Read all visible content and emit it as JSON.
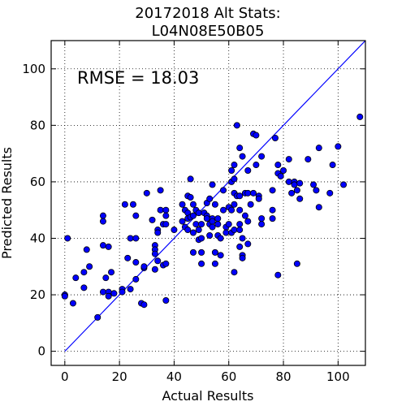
{
  "chart_data": {
    "type": "scatter",
    "title_line1": "20172018 Alt Stats:",
    "title_line2": "L04N08E50B05",
    "xlabel": "Actual Results",
    "ylabel": "Predicted Results",
    "annotation": "RMSE = 18.03",
    "xlim": [
      -5,
      110
    ],
    "ylim": [
      -5,
      110
    ],
    "xticks": [
      0,
      20,
      40,
      60,
      80,
      100
    ],
    "yticks": [
      0,
      20,
      40,
      60,
      80,
      100
    ],
    "grid": true,
    "reference_line": [
      [
        0,
        0
      ],
      [
        110,
        110
      ]
    ],
    "colors": {
      "marker": "#0000ff",
      "line": "#0000ff",
      "edge": "#000000",
      "grid": "#000000"
    },
    "points": [
      [
        0,
        20
      ],
      [
        0,
        19.5
      ],
      [
        1,
        40
      ],
      [
        3,
        17
      ],
      [
        4,
        26
      ],
      [
        7,
        28
      ],
      [
        7,
        22.5
      ],
      [
        8,
        36
      ],
      [
        9,
        30
      ],
      [
        12,
        12
      ],
      [
        14,
        48
      ],
      [
        14,
        46
      ],
      [
        14,
        37.5
      ],
      [
        14,
        21
      ],
      [
        15,
        26
      ],
      [
        16,
        37
      ],
      [
        16,
        21
      ],
      [
        16,
        19.5
      ],
      [
        17,
        28
      ],
      [
        18,
        20.5
      ],
      [
        21,
        22
      ],
      [
        21,
        21
      ],
      [
        22,
        52
      ],
      [
        23,
        33
      ],
      [
        24,
        22
      ],
      [
        24,
        40
      ],
      [
        25,
        52
      ],
      [
        26,
        25.5
      ],
      [
        26,
        31.5
      ],
      [
        26,
        40
      ],
      [
        26,
        48
      ],
      [
        28,
        17
      ],
      [
        29,
        16.5
      ],
      [
        29,
        29.5
      ],
      [
        29,
        30
      ],
      [
        30,
        56
      ],
      [
        32,
        46.5
      ],
      [
        33,
        29
      ],
      [
        33,
        37.5
      ],
      [
        33,
        36
      ],
      [
        33,
        34.5
      ],
      [
        34,
        32
      ],
      [
        34,
        43
      ],
      [
        34,
        42
      ],
      [
        35,
        57
      ],
      [
        35,
        50
      ],
      [
        36,
        45
      ],
      [
        36,
        30.5
      ],
      [
        37,
        31
      ],
      [
        37,
        50
      ],
      [
        37,
        48
      ],
      [
        37,
        45
      ],
      [
        37,
        18
      ],
      [
        40,
        43
      ],
      [
        43,
        52
      ],
      [
        43,
        46
      ],
      [
        44,
        50
      ],
      [
        44,
        44
      ],
      [
        45,
        55
      ],
      [
        45,
        49
      ],
      [
        45,
        47
      ],
      [
        45,
        43
      ],
      [
        46,
        61
      ],
      [
        46,
        54.5
      ],
      [
        46,
        47.5
      ],
      [
        47,
        52
      ],
      [
        47,
        48
      ],
      [
        47,
        42
      ],
      [
        47,
        35
      ],
      [
        48,
        50
      ],
      [
        48,
        45
      ],
      [
        49,
        49
      ],
      [
        49,
        43
      ],
      [
        49,
        39.5
      ],
      [
        50,
        45
      ],
      [
        50,
        40
      ],
      [
        50,
        35
      ],
      [
        50,
        31
      ],
      [
        51,
        49
      ],
      [
        52,
        52.5
      ],
      [
        52,
        48
      ],
      [
        52,
        47
      ],
      [
        53,
        54
      ],
      [
        53,
        45
      ],
      [
        53,
        41
      ],
      [
        54,
        59
      ],
      [
        54,
        47
      ],
      [
        54,
        46
      ],
      [
        54,
        44
      ],
      [
        55,
        52
      ],
      [
        55,
        35
      ],
      [
        55,
        31
      ],
      [
        56,
        47
      ],
      [
        56,
        45
      ],
      [
        56,
        41
      ],
      [
        57,
        40
      ],
      [
        57,
        34
      ],
      [
        58,
        57
      ],
      [
        58,
        50
      ],
      [
        59,
        44
      ],
      [
        59,
        42
      ],
      [
        60,
        51
      ],
      [
        60,
        45
      ],
      [
        61,
        64
      ],
      [
        61,
        60
      ],
      [
        61,
        50
      ],
      [
        61,
        42
      ],
      [
        62,
        66
      ],
      [
        62,
        61
      ],
      [
        62,
        56
      ],
      [
        62,
        52
      ],
      [
        62,
        43
      ],
      [
        62,
        28
      ],
      [
        63,
        80
      ],
      [
        63,
        55
      ],
      [
        64,
        72
      ],
      [
        64,
        55
      ],
      [
        64,
        50
      ],
      [
        64,
        45
      ],
      [
        64,
        43
      ],
      [
        64,
        37
      ],
      [
        65,
        69
      ],
      [
        65,
        40
      ],
      [
        65,
        34
      ],
      [
        65,
        33
      ],
      [
        66,
        56
      ],
      [
        66,
        48
      ],
      [
        67,
        64
      ],
      [
        67,
        56
      ],
      [
        67,
        46
      ],
      [
        67,
        38
      ],
      [
        68,
        52
      ],
      [
        69,
        77
      ],
      [
        69,
        56
      ],
      [
        70,
        76.5
      ],
      [
        70,
        66
      ],
      [
        71,
        55
      ],
      [
        71,
        54
      ],
      [
        72,
        69
      ],
      [
        72,
        45
      ],
      [
        72,
        47
      ],
      [
        76,
        57
      ],
      [
        76,
        50
      ],
      [
        76,
        47
      ],
      [
        77,
        75.5
      ],
      [
        78,
        66
      ],
      [
        78,
        63
      ],
      [
        78,
        27
      ],
      [
        79,
        62
      ],
      [
        80,
        64
      ],
      [
        82,
        68
      ],
      [
        82,
        60
      ],
      [
        83,
        56
      ],
      [
        84,
        60
      ],
      [
        84,
        59
      ],
      [
        85,
        31
      ],
      [
        85,
        57
      ],
      [
        86,
        59.5
      ],
      [
        86,
        54
      ],
      [
        89,
        68
      ],
      [
        91,
        59
      ],
      [
        92,
        57
      ],
      [
        93,
        51
      ],
      [
        93,
        72
      ],
      [
        97,
        56
      ],
      [
        98,
        66
      ],
      [
        100,
        72.5
      ],
      [
        102,
        59
      ],
      [
        108,
        83
      ]
    ]
  }
}
